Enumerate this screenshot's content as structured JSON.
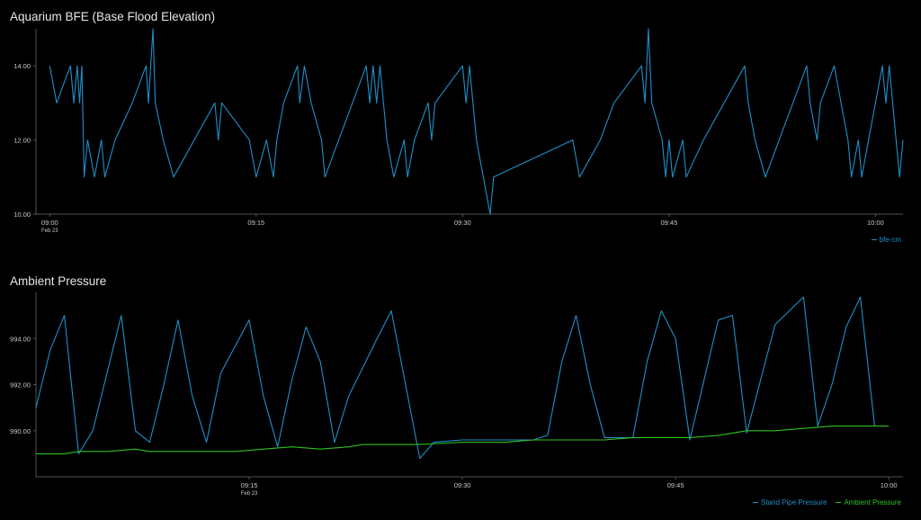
{
  "charts": [
    {
      "title": "Aquarium BFE (Base Flood Elevation)",
      "legend": [
        {
          "label": "bfe-cm",
          "color": "#1f8fc8"
        }
      ]
    },
    {
      "title": "Ambient Pressure",
      "legend": [
        {
          "label": "Stand Pipe Pressure",
          "color": "#1f8fc8"
        },
        {
          "label": "Ambient Pressure",
          "color": "#2fc21f"
        }
      ]
    }
  ],
  "chart_data": [
    {
      "type": "line",
      "title": "Aquarium BFE (Base Flood Elevation)",
      "xlabel": "",
      "ylabel": "",
      "xlim": [
        "08:59",
        "10:02"
      ],
      "ylim": [
        10,
        15
      ],
      "x_ticks": [
        {
          "value": "09:00",
          "sub": "Feb 23"
        },
        {
          "value": "09:15",
          "sub": ""
        },
        {
          "value": "09:30",
          "sub": ""
        },
        {
          "value": "09:45",
          "sub": ""
        },
        {
          "value": "10:00",
          "sub": ""
        }
      ],
      "y_ticks": [
        "10.00",
        "12.00",
        "14.00"
      ],
      "legend_position": "bottom-right",
      "series": [
        {
          "name": "bfe-cm",
          "color": "#1f8fc8",
          "points": [
            [
              "09:00",
              14.0
            ],
            [
              "09:00:30",
              13.0
            ],
            [
              "09:01:30",
              14.0
            ],
            [
              "09:01:45",
              13.0
            ],
            [
              "09:02",
              14.0
            ],
            [
              "09:02:10",
              13.0
            ],
            [
              "09:02:20",
              14.0
            ],
            [
              "09:02:30",
              11.0
            ],
            [
              "09:02:45",
              12.0
            ],
            [
              "09:03:15",
              11.0
            ],
            [
              "09:03:45",
              12.0
            ],
            [
              "09:04",
              11.0
            ],
            [
              "09:04:45",
              12.0
            ],
            [
              "09:06",
              13.0
            ],
            [
              "09:07",
              14.0
            ],
            [
              "09:07:10",
              13.0
            ],
            [
              "09:07:30",
              15.0
            ],
            [
              "09:07:40",
              13.0
            ],
            [
              "09:08:15",
              12.0
            ],
            [
              "09:09",
              11.0
            ],
            [
              "09:12",
              13.0
            ],
            [
              "09:12:15",
              12.0
            ],
            [
              "09:12:30",
              13.0
            ],
            [
              "09:14:30",
              12.0
            ],
            [
              "09:15",
              11.0
            ],
            [
              "09:15:45",
              12.0
            ],
            [
              "09:16:15",
              11.0
            ],
            [
              "09:16:30",
              12.0
            ],
            [
              "09:17",
              13.0
            ],
            [
              "09:18",
              14.0
            ],
            [
              "09:18:10",
              13.0
            ],
            [
              "09:18:30",
              14.0
            ],
            [
              "09:19",
              13.0
            ],
            [
              "09:19:45",
              12.0
            ],
            [
              "09:20",
              11.0
            ],
            [
              "09:21",
              12.0
            ],
            [
              "09:22",
              13.0
            ],
            [
              "09:23",
              14.0
            ],
            [
              "09:23:15",
              13.0
            ],
            [
              "09:23:30",
              14.0
            ],
            [
              "09:23:45",
              13.0
            ],
            [
              "09:24",
              14.0
            ],
            [
              "09:24:30",
              12.0
            ],
            [
              "09:25",
              11.0
            ],
            [
              "09:25:45",
              12.0
            ],
            [
              "09:26",
              11.0
            ],
            [
              "09:26:30",
              12.0
            ],
            [
              "09:27:30",
              13.0
            ],
            [
              "09:27:45",
              12.0
            ],
            [
              "09:28",
              13.0
            ],
            [
              "09:30",
              14.0
            ],
            [
              "09:30:15",
              13.0
            ],
            [
              "09:30:30",
              14.0
            ],
            [
              "09:31",
              12.0
            ],
            [
              "09:32",
              10.0
            ],
            [
              "09:32:15",
              11.0
            ],
            [
              "09:38",
              12.0
            ],
            [
              "09:38:30",
              11.0
            ],
            [
              "09:40",
              12.0
            ],
            [
              "09:41",
              13.0
            ],
            [
              "09:43",
              14.0
            ],
            [
              "09:43:15",
              13.0
            ],
            [
              "09:43:30",
              15.0
            ],
            [
              "09:43:45",
              13.0
            ],
            [
              "09:44:30",
              12.0
            ],
            [
              "09:44:45",
              11.0
            ],
            [
              "09:45",
              12.0
            ],
            [
              "09:45:15",
              11.0
            ],
            [
              "09:46",
              12.0
            ],
            [
              "09:46:15",
              11.0
            ],
            [
              "09:47:30",
              12.0
            ],
            [
              "09:49",
              13.0
            ],
            [
              "09:50:30",
              14.0
            ],
            [
              "09:50:45",
              13.0
            ],
            [
              "09:51:15",
              12.0
            ],
            [
              "09:52",
              11.0
            ],
            [
              "09:53",
              12.0
            ],
            [
              "09:54",
              13.0
            ],
            [
              "09:55",
              14.0
            ],
            [
              "09:55:15",
              13.0
            ],
            [
              "09:55:45",
              12.0
            ],
            [
              "09:56",
              13.0
            ],
            [
              "09:57",
              14.0
            ],
            [
              "09:57:30",
              13.0
            ],
            [
              "09:58",
              12.0
            ],
            [
              "09:58:15",
              11.0
            ],
            [
              "09:58:45",
              12.0
            ],
            [
              "09:59",
              11.0
            ],
            [
              "09:59:30",
              12.0
            ],
            [
              "10:00",
              13.0
            ],
            [
              "10:00:30",
              14.0
            ],
            [
              "10:00:45",
              13.0
            ],
            [
              "10:01",
              14.0
            ],
            [
              "10:01:30",
              12.0
            ],
            [
              "10:01:45",
              11.0
            ],
            [
              "10:02",
              12.0
            ]
          ]
        }
      ]
    },
    {
      "type": "line",
      "title": "Ambient Pressure",
      "xlabel": "",
      "ylabel": "",
      "xlim": [
        "09:00",
        "10:01"
      ],
      "ylim": [
        988,
        996
      ],
      "x_ticks": [
        {
          "value": "09:15",
          "sub": "Feb 23"
        },
        {
          "value": "09:30",
          "sub": ""
        },
        {
          "value": "09:45",
          "sub": ""
        },
        {
          "value": "10:00",
          "sub": ""
        }
      ],
      "y_ticks": [
        "990.00",
        "992.00",
        "994.00"
      ],
      "legend_position": "bottom-right",
      "series": [
        {
          "name": "Stand Pipe Pressure",
          "color": "#1f8fc8",
          "points": [
            [
              "09:00",
              991.0
            ],
            [
              "09:01",
              993.5
            ],
            [
              "09:02",
              995.0
            ],
            [
              "09:03",
              989.0
            ],
            [
              "09:04",
              990.0
            ],
            [
              "09:06",
              995.0
            ],
            [
              "09:07",
              990.0
            ],
            [
              "09:08",
              989.5
            ],
            [
              "09:09",
              992.0
            ],
            [
              "09:10",
              994.8
            ],
            [
              "09:11",
              991.5
            ],
            [
              "09:12",
              989.5
            ],
            [
              "09:13",
              992.5
            ],
            [
              "09:15",
              994.8
            ],
            [
              "09:16",
              991.5
            ],
            [
              "09:17",
              989.3
            ],
            [
              "09:18",
              992.2
            ],
            [
              "09:19",
              994.5
            ],
            [
              "09:20",
              993.0
            ],
            [
              "09:21",
              989.5
            ],
            [
              "09:22",
              991.5
            ],
            [
              "09:24",
              994.0
            ],
            [
              "09:25",
              995.2
            ],
            [
              "09:27",
              988.8
            ],
            [
              "09:28",
              989.5
            ],
            [
              "09:30",
              989.6
            ],
            [
              "09:35",
              989.6
            ],
            [
              "09:36",
              989.8
            ],
            [
              "09:37",
              993.0
            ],
            [
              "09:38",
              995.0
            ],
            [
              "09:39",
              992.0
            ],
            [
              "09:40",
              989.7
            ],
            [
              "09:42",
              989.7
            ],
            [
              "09:43",
              993.0
            ],
            [
              "09:44",
              995.2
            ],
            [
              "09:45",
              994.0
            ],
            [
              "09:46",
              989.6
            ],
            [
              "09:48",
              994.8
            ],
            [
              "09:49",
              995.0
            ],
            [
              "09:50",
              989.9
            ],
            [
              "09:52",
              994.6
            ],
            [
              "09:54",
              995.8
            ],
            [
              "09:55",
              990.2
            ],
            [
              "09:56",
              992.0
            ],
            [
              "09:57",
              994.5
            ],
            [
              "09:58",
              995.8
            ],
            [
              "09:59",
              990.2
            ]
          ]
        },
        {
          "name": "Ambient Pressure",
          "color": "#2fc21f",
          "points": [
            [
              "09:00",
              989.0
            ],
            [
              "09:02",
              989.0
            ],
            [
              "09:03",
              989.1
            ],
            [
              "09:05",
              989.1
            ],
            [
              "09:07",
              989.2
            ],
            [
              "09:08",
              989.1
            ],
            [
              "09:10",
              989.1
            ],
            [
              "09:12",
              989.1
            ],
            [
              "09:14",
              989.1
            ],
            [
              "09:16",
              989.2
            ],
            [
              "09:18",
              989.3
            ],
            [
              "09:20",
              989.2
            ],
            [
              "09:22",
              989.3
            ],
            [
              "09:23",
              989.4
            ],
            [
              "09:25",
              989.4
            ],
            [
              "09:27",
              989.4
            ],
            [
              "09:30",
              989.5
            ],
            [
              "09:33",
              989.5
            ],
            [
              "09:35",
              989.6
            ],
            [
              "09:38",
              989.6
            ],
            [
              "09:40",
              989.6
            ],
            [
              "09:42",
              989.7
            ],
            [
              "09:44",
              989.7
            ],
            [
              "09:46",
              989.7
            ],
            [
              "09:48",
              989.8
            ],
            [
              "09:50",
              990.0
            ],
            [
              "09:52",
              990.0
            ],
            [
              "09:54",
              990.1
            ],
            [
              "09:56",
              990.2
            ],
            [
              "09:58",
              990.2
            ],
            [
              "10:00",
              990.2
            ]
          ]
        }
      ]
    }
  ]
}
